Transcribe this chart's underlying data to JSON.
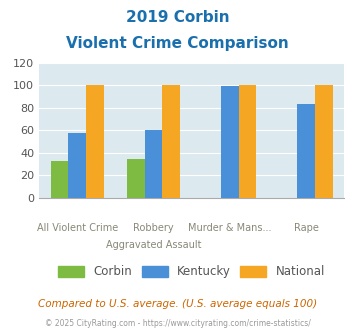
{
  "title_line1": "2019 Corbin",
  "title_line2": "Violent Crime Comparison",
  "corbin": [
    33,
    35,
    0,
    0
  ],
  "kentucky": [
    58,
    60,
    99,
    83
  ],
  "national": [
    100,
    100,
    100,
    100
  ],
  "corbin_color": "#7dbb42",
  "kentucky_color": "#4a90d9",
  "national_color": "#f5a623",
  "ylim": [
    0,
    120
  ],
  "yticks": [
    0,
    20,
    40,
    60,
    80,
    100,
    120
  ],
  "bg_color": "#dce9ef",
  "fig_bg": "#ffffff",
  "title_color": "#1a6fad",
  "xlabel_top": [
    "",
    "Robbery",
    "Murder & Mans...",
    ""
  ],
  "xlabel_bottom": [
    "All Violent Crime",
    "Aggravated Assault",
    "",
    "Rape"
  ],
  "footer_text": "Compared to U.S. average. (U.S. average equals 100)",
  "copyright_text": "© 2025 CityRating.com - https://www.cityrating.com/crime-statistics/",
  "legend_labels": [
    "Corbin",
    "Kentucky",
    "National"
  ]
}
